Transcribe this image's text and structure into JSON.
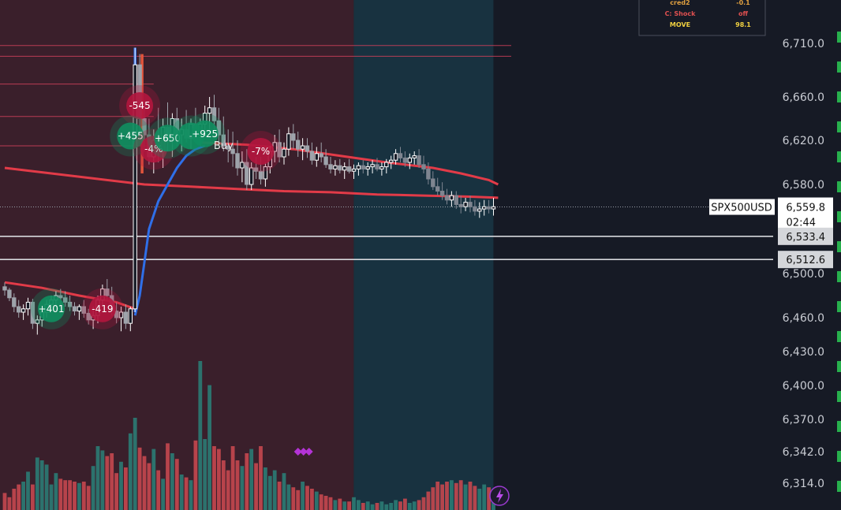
{
  "chart_data": {
    "type": "candlestick",
    "symbol": "SPX500USD",
    "price_axis_ticks": [
      "6,710.0",
      "6,660.0",
      "6,620.0",
      "6,580.0",
      "6,500.0",
      "6,460.0",
      "6,430.0",
      "6,400.0",
      "6,370.0",
      "6,342.0",
      "6,314.0"
    ],
    "price_axis_tick_values": [
      6710,
      6660,
      6620,
      6580,
      6500,
      6460,
      6430,
      6400,
      6370,
      6342,
      6314
    ],
    "last_price": {
      "label": "6,559.8",
      "value": 6559.8,
      "countdown": "02:44"
    },
    "level_flags": [
      {
        "label": "6,533.4",
        "value": 6533.4
      },
      {
        "label": "6,512.6",
        "value": 6512.6
      }
    ],
    "red_levels": [
      6708,
      6698,
      6672,
      6642,
      6615
    ],
    "sessions": [
      {
        "name": "session-a",
        "start_bar": 0,
        "end_bar": 76,
        "color": "#3a1f2b"
      },
      {
        "name": "session-b",
        "start_bar": 76,
        "end_bar": 106,
        "color": "#183240"
      }
    ],
    "candles": [
      [
        6488,
        6492,
        6480,
        6485
      ],
      [
        6485,
        6487,
        6475,
        6478
      ],
      [
        6478,
        6482,
        6465,
        6470
      ],
      [
        6470,
        6476,
        6460,
        6465
      ],
      [
        6465,
        6472,
        6458,
        6468
      ],
      [
        6468,
        6478,
        6462,
        6474
      ],
      [
        6474,
        6477,
        6450,
        6455
      ],
      [
        6455,
        6462,
        6445,
        6458
      ],
      [
        6458,
        6468,
        6452,
        6465
      ],
      [
        6465,
        6476,
        6460,
        6472
      ],
      [
        6472,
        6480,
        6466,
        6476
      ],
      [
        6476,
        6484,
        6470,
        6480
      ],
      [
        6480,
        6486,
        6472,
        6478
      ],
      [
        6478,
        6484,
        6470,
        6474
      ],
      [
        6474,
        6480,
        6466,
        6470
      ],
      [
        6470,
        6474,
        6462,
        6466
      ],
      [
        6466,
        6472,
        6458,
        6470
      ],
      [
        6470,
        6476,
        6460,
        6464
      ],
      [
        6464,
        6468,
        6454,
        6458
      ],
      [
        6458,
        6470,
        6450,
        6462
      ],
      [
        6462,
        6480,
        6455,
        6476
      ],
      [
        6476,
        6490,
        6470,
        6486
      ],
      [
        6486,
        6495,
        6475,
        6480
      ],
      [
        6480,
        6488,
        6462,
        6466
      ],
      [
        6466,
        6474,
        6455,
        6460
      ],
      [
        6460,
        6470,
        6448,
        6465
      ],
      [
        6465,
        6472,
        6450,
        6455
      ],
      [
        6455,
        6470,
        6448,
        6468
      ],
      [
        6468,
        6706,
        6465,
        6690
      ],
      [
        6690,
        6700,
        6625,
        6640
      ],
      [
        6640,
        6655,
        6610,
        6625
      ],
      [
        6625,
        6640,
        6598,
        6605
      ],
      [
        6605,
        6630,
        6590,
        6620
      ],
      [
        6620,
        6650,
        6600,
        6610
      ],
      [
        6610,
        6640,
        6595,
        6632
      ],
      [
        6632,
        6655,
        6610,
        6620
      ],
      [
        6620,
        6645,
        6605,
        6640
      ],
      [
        6640,
        6650,
        6615,
        6625
      ],
      [
        6625,
        6640,
        6610,
        6630
      ],
      [
        6630,
        6648,
        6618,
        6622
      ],
      [
        6622,
        6640,
        6612,
        6635
      ],
      [
        6635,
        6650,
        6620,
        6628
      ],
      [
        6628,
        6640,
        6615,
        6635
      ],
      [
        6635,
        6652,
        6625,
        6645
      ],
      [
        6645,
        6660,
        6630,
        6650
      ],
      [
        6650,
        6662,
        6630,
        6638
      ],
      [
        6638,
        6650,
        6618,
        6625
      ],
      [
        6625,
        6642,
        6610,
        6615
      ],
      [
        6615,
        6630,
        6600,
        6612
      ],
      [
        6612,
        6628,
        6596,
        6608
      ],
      [
        6608,
        6620,
        6588,
        6595
      ],
      [
        6595,
        6610,
        6582,
        6600
      ],
      [
        6600,
        6612,
        6575,
        6580
      ],
      [
        6580,
        6600,
        6575,
        6595
      ],
      [
        6595,
        6605,
        6585,
        6592
      ],
      [
        6592,
        6605,
        6580,
        6585
      ],
      [
        6585,
        6600,
        6578,
        6596
      ],
      [
        6596,
        6615,
        6590,
        6610
      ],
      [
        6610,
        6625,
        6600,
        6618
      ],
      [
        6618,
        6630,
        6600,
        6605
      ],
      [
        6605,
        6618,
        6598,
        6612
      ],
      [
        6612,
        6632,
        6606,
        6626
      ],
      [
        6626,
        6635,
        6612,
        6620
      ],
      [
        6620,
        6628,
        6605,
        6612
      ],
      [
        6612,
        6622,
        6602,
        6615
      ],
      [
        6615,
        6622,
        6604,
        6610
      ],
      [
        6610,
        6618,
        6598,
        6602
      ],
      [
        6602,
        6614,
        6596,
        6608
      ],
      [
        6608,
        6618,
        6600,
        6605
      ],
      [
        6605,
        6612,
        6595,
        6598
      ],
      [
        6598,
        6605,
        6590,
        6594
      ],
      [
        6594,
        6602,
        6588,
        6597
      ],
      [
        6597,
        6603,
        6590,
        6593
      ],
      [
        6593,
        6600,
        6585,
        6596
      ],
      [
        6596,
        6603,
        6590,
        6592
      ],
      [
        6592,
        6598,
        6585,
        6594
      ],
      [
        6594,
        6600,
        6588,
        6597
      ],
      [
        6597,
        6602,
        6590,
        6594
      ],
      [
        6594,
        6600,
        6588,
        6596
      ],
      [
        6596,
        6602,
        6590,
        6598
      ],
      [
        6598,
        6604,
        6592,
        6594
      ],
      [
        6594,
        6600,
        6588,
        6596
      ],
      [
        6596,
        6603,
        6590,
        6600
      ],
      [
        6600,
        6606,
        6594,
        6602
      ],
      [
        6602,
        6612,
        6598,
        6608
      ],
      [
        6608,
        6614,
        6600,
        6604
      ],
      [
        6604,
        6610,
        6596,
        6600
      ],
      [
        6600,
        6608,
        6594,
        6604
      ],
      [
        6604,
        6610,
        6598,
        6606
      ],
      [
        6606,
        6612,
        6595,
        6598
      ],
      [
        6598,
        6606,
        6590,
        6594
      ],
      [
        6594,
        6600,
        6580,
        6585
      ],
      [
        6585,
        6592,
        6575,
        6578
      ],
      [
        6578,
        6586,
        6570,
        6574
      ],
      [
        6574,
        6582,
        6566,
        6570
      ],
      [
        6570,
        6576,
        6562,
        6566
      ],
      [
        6566,
        6574,
        6560,
        6570
      ],
      [
        6570,
        6574,
        6558,
        6562
      ],
      [
        6562,
        6570,
        6554,
        6560
      ],
      [
        6560,
        6568,
        6556,
        6564
      ],
      [
        6564,
        6570,
        6555,
        6560
      ],
      [
        6560,
        6566,
        6552,
        6556
      ],
      [
        6556,
        6564,
        6550,
        6558
      ],
      [
        6558,
        6566,
        6552,
        6560
      ],
      [
        6560,
        6566,
        6554,
        6558
      ],
      [
        6558,
        6568,
        6552,
        6560
      ]
    ],
    "volume": [
      24,
      18,
      30,
      36,
      40,
      54,
      36,
      74,
      70,
      64,
      36,
      52,
      44,
      42,
      42,
      40,
      38,
      40,
      34,
      62,
      90,
      84,
      76,
      80,
      52,
      68,
      60,
      108,
      130,
      88,
      76,
      66,
      86,
      56,
      44,
      94,
      80,
      72,
      50,
      46,
      42,
      98,
      210,
      100,
      176,
      90,
      86,
      70,
      56,
      90,
      70,
      62,
      80,
      86,
      66,
      90,
      60,
      48,
      56,
      40,
      52,
      36,
      32,
      28,
      40,
      34,
      30,
      26,
      22,
      20,
      18,
      14,
      16,
      12,
      12,
      18,
      14,
      10,
      12,
      8,
      10,
      12,
      8,
      10,
      14,
      12,
      16,
      10,
      12,
      14,
      18,
      26,
      32,
      40,
      36,
      40,
      42,
      38,
      42,
      36,
      40,
      34,
      30,
      36,
      32,
      30
    ],
    "ema_fast_points": [
      [
        28,
        6462
      ],
      [
        29,
        6480
      ],
      [
        30,
        6510
      ],
      [
        31,
        6540
      ],
      [
        33,
        6565
      ],
      [
        35,
        6580
      ],
      [
        37,
        6595
      ],
      [
        39,
        6606
      ],
      [
        41,
        6612
      ],
      [
        43,
        6615
      ]
    ],
    "ema_slow_points": [
      [
        0,
        6595
      ],
      [
        10,
        6590
      ],
      [
        20,
        6585
      ],
      [
        30,
        6580
      ],
      [
        40,
        6578
      ],
      [
        50,
        6576
      ],
      [
        60,
        6574
      ],
      [
        70,
        6573
      ],
      [
        80,
        6571
      ],
      [
        90,
        6570
      ],
      [
        100,
        6569
      ],
      [
        106,
        6568
      ]
    ],
    "lower_ma_points": [
      [
        0,
        6492
      ],
      [
        8,
        6487
      ],
      [
        16,
        6480
      ],
      [
        24,
        6474
      ],
      [
        28,
        6468
      ]
    ],
    "upper_ma_points": [
      [
        42,
        6618
      ],
      [
        52,
        6616
      ],
      [
        62,
        6612
      ],
      [
        72,
        6606
      ],
      [
        82,
        6600
      ],
      [
        92,
        6595
      ],
      [
        98,
        6590
      ],
      [
        104,
        6584
      ],
      [
        106,
        6580
      ]
    ],
    "trade_markers": [
      {
        "text": "-545",
        "bar": 29,
        "price": 6652,
        "color": "#b2163e"
      },
      {
        "text": "+455",
        "bar": 27,
        "price": 6624,
        "color": "#0f8f61"
      },
      {
        "text": "-4%",
        "bar": 32,
        "price": 6612,
        "color": "#b2163e"
      },
      {
        "text": "+650",
        "bar": 35,
        "price": 6622,
        "color": "#0f8f61"
      },
      {
        "text": "-",
        "bar": 40,
        "price": 6624,
        "color": "#0f8f61"
      },
      {
        "text": "+925",
        "bar": 43,
        "price": 6626,
        "color": "#0f8f61"
      },
      {
        "text": "-7%",
        "bar": 55,
        "price": 6610,
        "color": "#b2163e"
      },
      {
        "text": "+401",
        "bar": 10,
        "price": 6468,
        "color": "#0f8f61"
      },
      {
        "text": "-419",
        "bar": 21,
        "price": 6468,
        "color": "#b2163e"
      }
    ],
    "buy_label": {
      "text": "Buy",
      "bar": 47,
      "price": 6612
    },
    "diamond_markers_bar": 63,
    "legend_rows": [
      {
        "label": "cred2",
        "value": "-0.1",
        "color": "#e0a040"
      },
      {
        "label": "C: Shock",
        "value": "off",
        "color": "#e05050"
      },
      {
        "label": "MOVE",
        "value": "98.1",
        "color": "#f0d040"
      }
    ]
  }
}
